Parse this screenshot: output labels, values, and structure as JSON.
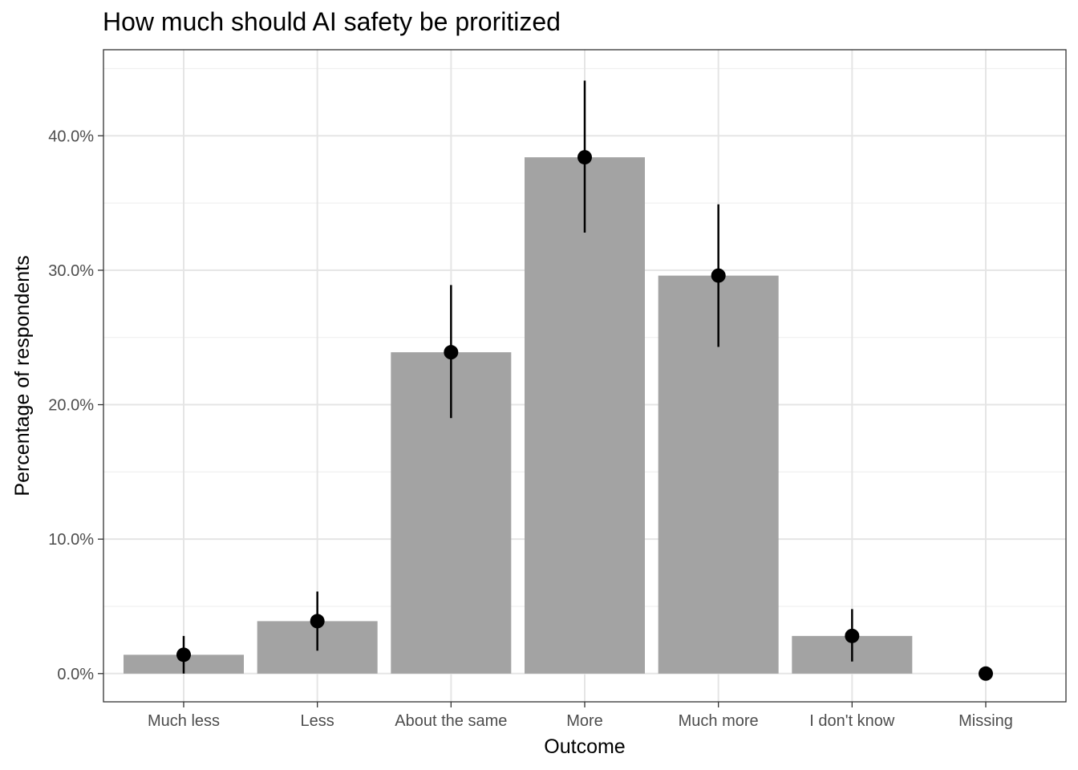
{
  "chart_data": {
    "type": "bar",
    "title": "How much should AI safety be proritized",
    "xlabel": "Outcome",
    "ylabel": "Percentage of respondents",
    "categories": [
      "Much less",
      "Less",
      "About the same",
      "More",
      "Much more",
      "I don't know",
      "Missing"
    ],
    "values": [
      1.4,
      3.9,
      23.9,
      38.4,
      29.6,
      2.8,
      0.0
    ],
    "error_low": [
      0.0,
      1.7,
      19.0,
      32.8,
      24.3,
      0.9,
      0.0
    ],
    "error_high": [
      2.8,
      6.1,
      28.9,
      44.1,
      34.9,
      4.8,
      0.0
    ],
    "show_bar": [
      true,
      true,
      true,
      true,
      true,
      true,
      false
    ],
    "ylim": [
      -2.1,
      46.4
    ],
    "yticks": [
      0,
      10,
      20,
      30,
      40
    ],
    "ytick_labels": [
      "0.0%",
      "10.0%",
      "20.0%",
      "30.0%",
      "40.0%"
    ],
    "grid": true,
    "colors": {
      "bar": "#a3a3a3",
      "point": "#000000",
      "grid_major": "#e5e5e5",
      "grid_minor": "#f0f0f0",
      "panel_border": "#333333",
      "tick_text": "#4d4d4d"
    }
  }
}
